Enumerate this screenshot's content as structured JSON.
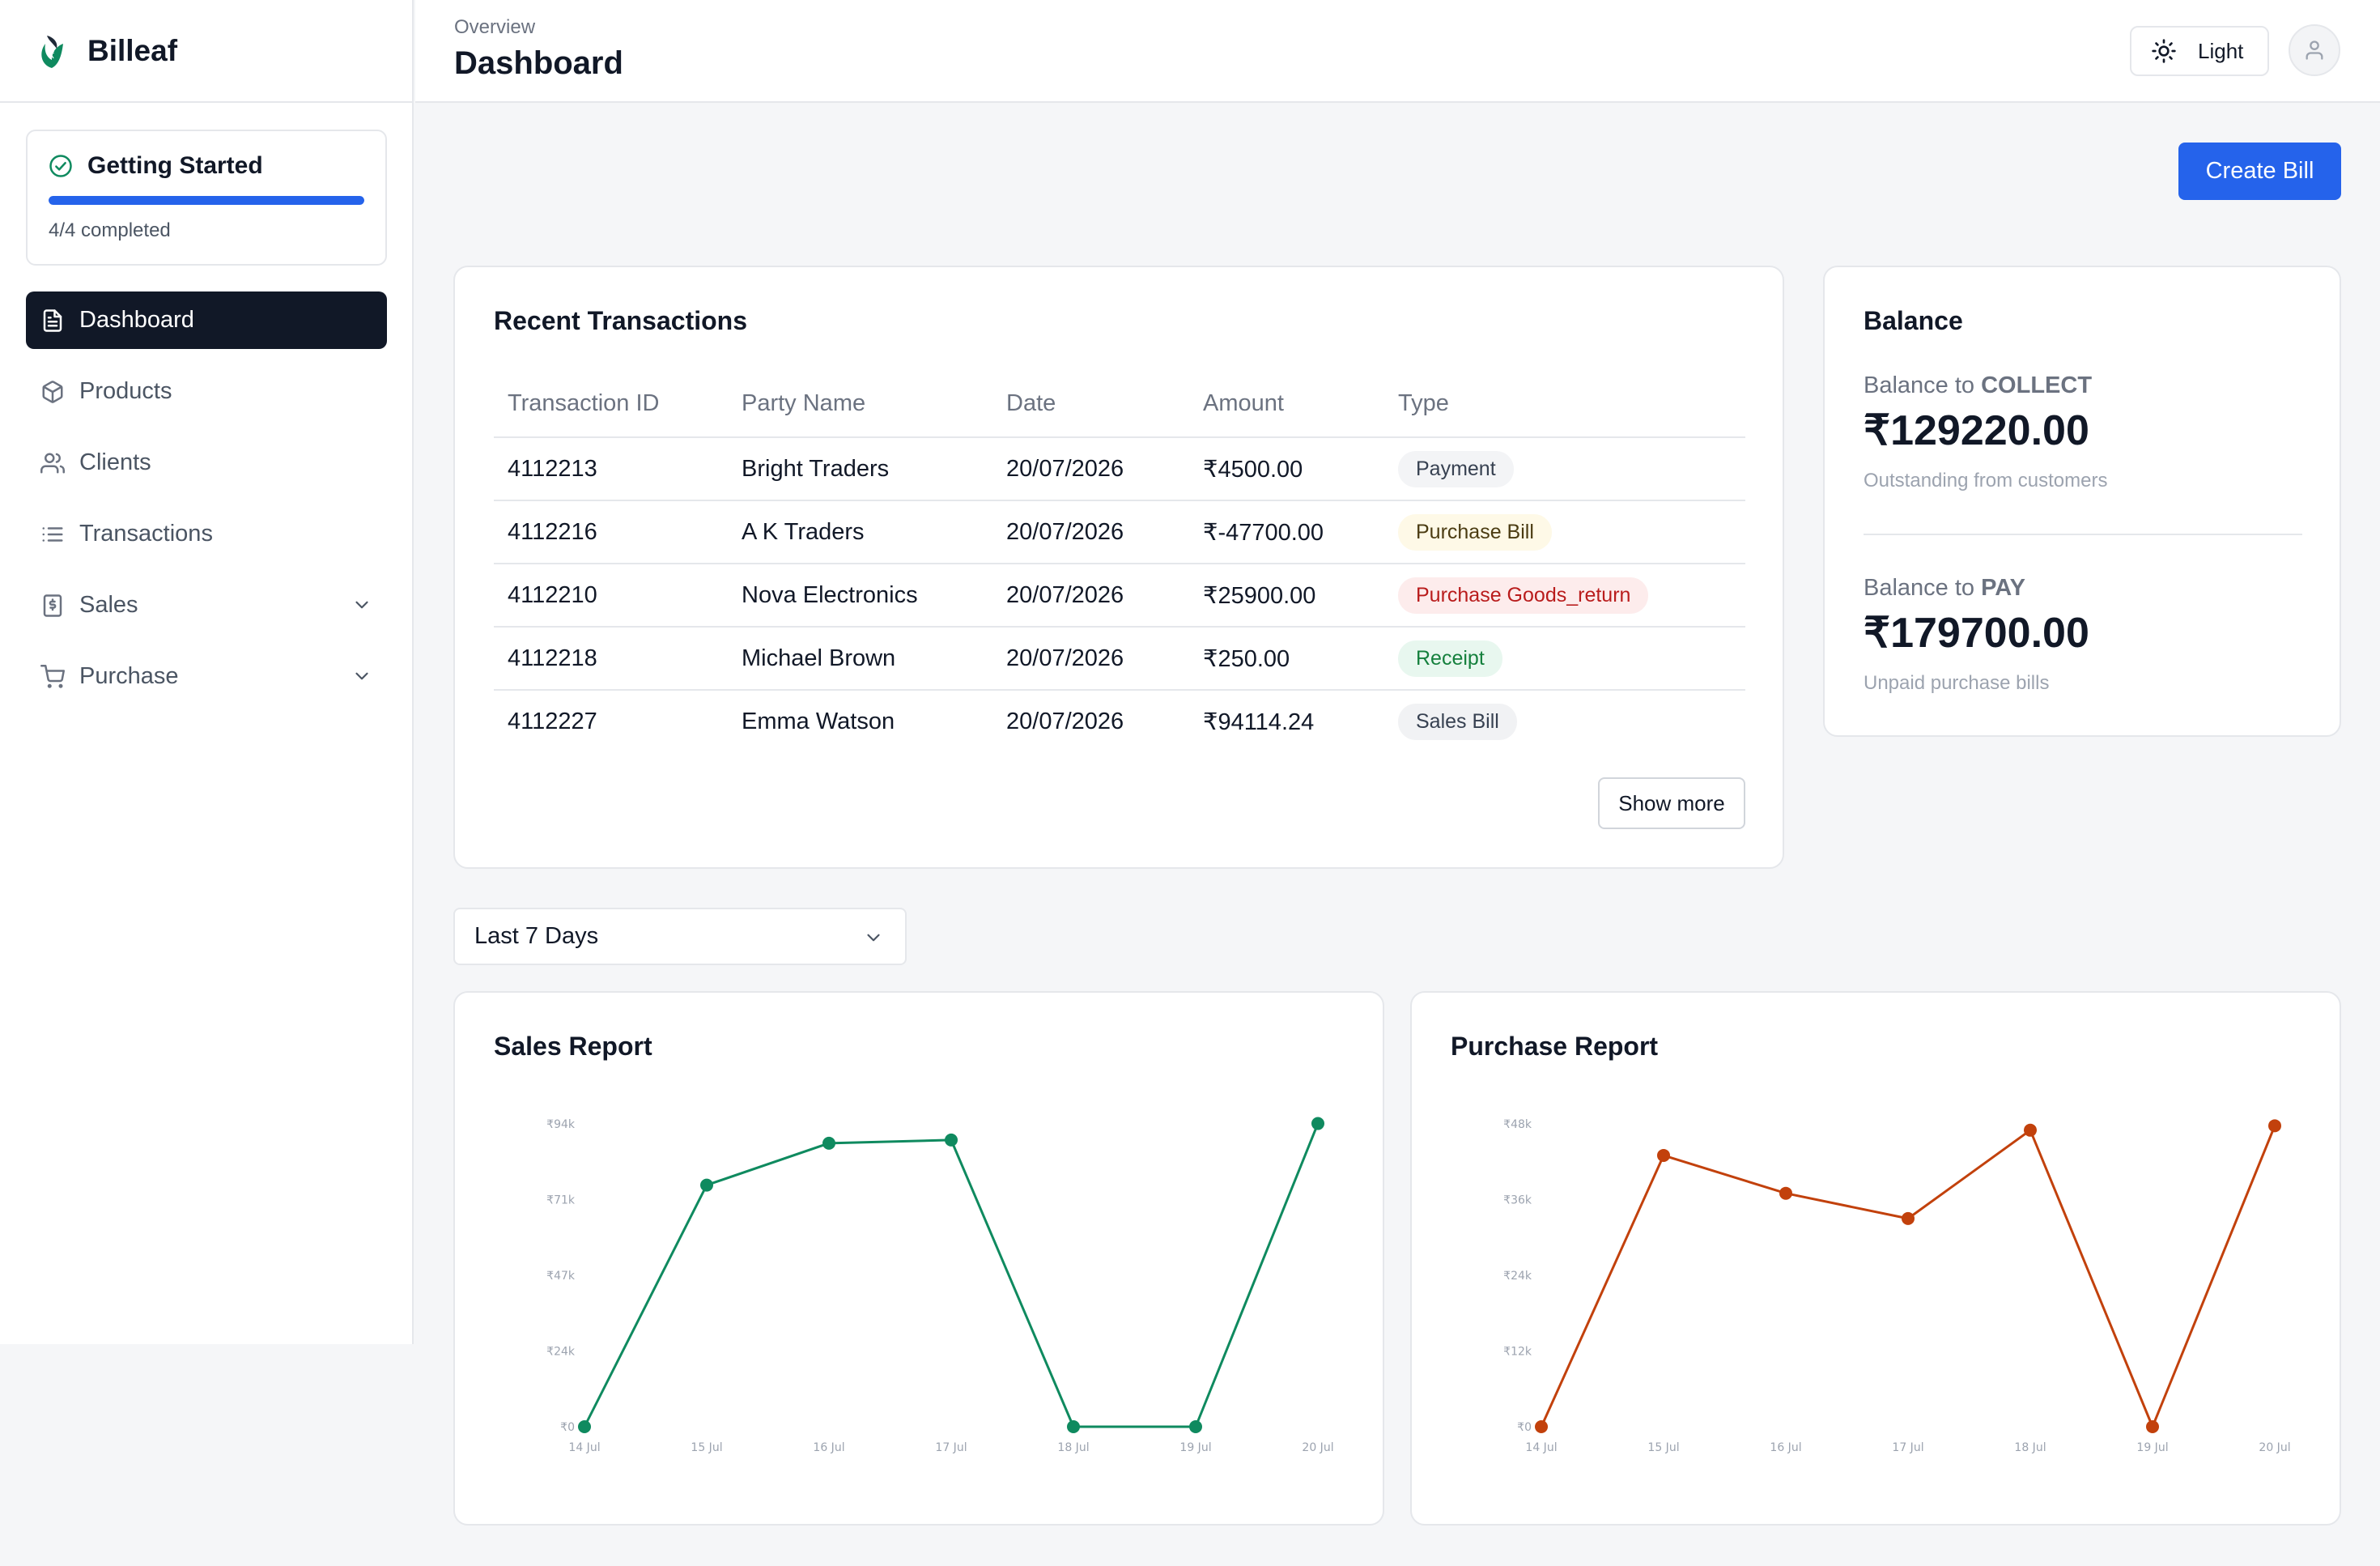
{
  "app": {
    "name": "Billeaf"
  },
  "getting_started": {
    "title": "Getting Started",
    "progress": 1.0,
    "status": "4/4 completed"
  },
  "sidebar": {
    "items": [
      {
        "label": "Dashboard",
        "icon": "document-icon",
        "active": true
      },
      {
        "label": "Products",
        "icon": "box-icon"
      },
      {
        "label": "Clients",
        "icon": "users-icon"
      },
      {
        "label": "Transactions",
        "icon": "list-icon"
      },
      {
        "label": "Sales",
        "icon": "receipt-icon",
        "expandable": true
      },
      {
        "label": "Purchase",
        "icon": "cart-icon",
        "expandable": true
      }
    ]
  },
  "header": {
    "breadcrumb": "Overview",
    "title": "Dashboard",
    "theme_label": "Light"
  },
  "actions": {
    "create_bill": "Create Bill"
  },
  "transactions": {
    "title": "Recent Transactions",
    "columns": [
      "Transaction ID",
      "Party Name",
      "Date",
      "Amount",
      "Type"
    ],
    "rows": [
      {
        "id": "4112213",
        "party": "Bright Traders",
        "date": "20/07/2026",
        "amount": "₹4500.00",
        "type": "Payment",
        "type_color": "#374151"
      },
      {
        "id": "4112216",
        "party": "A K Traders",
        "date": "20/07/2026",
        "amount": "₹-47700.00",
        "type": "Purchase Bill",
        "type_color": "#4b3c12"
      },
      {
        "id": "4112210",
        "party": "Nova Electronics",
        "date": "20/07/2026",
        "amount": "₹25900.00",
        "type": "Purchase Goods_return",
        "type_color": "#b91c1c"
      },
      {
        "id": "4112218",
        "party": "Michael Brown",
        "date": "20/07/2026",
        "amount": "₹250.00",
        "type": "Receipt",
        "type_color": "#15803d"
      },
      {
        "id": "4112227",
        "party": "Emma Watson",
        "date": "20/07/2026",
        "amount": "₹94114.24",
        "type": "Sales Bill",
        "type_color": "#374151"
      }
    ],
    "show_more": "Show more"
  },
  "balance": {
    "title": "Balance",
    "collect": {
      "prefix": "Balance to ",
      "emphasis": "COLLECT",
      "amount": "₹129220.00",
      "sub": "Outstanding from customers"
    },
    "pay": {
      "prefix": "Balance to ",
      "emphasis": "PAY",
      "amount": "₹179700.00",
      "sub": "Unpaid purchase bills"
    }
  },
  "range": {
    "selected": "Last 7 Days"
  },
  "chart_data": [
    {
      "type": "line",
      "title": "Sales Report",
      "categories": [
        "14 Jul",
        "15 Jul",
        "16 Jul",
        "17 Jul",
        "18 Jul",
        "19 Jul",
        "20 Jul"
      ],
      "y_ticks": [
        "₹0",
        "₹24k",
        "₹47k",
        "₹71k",
        "₹94k"
      ],
      "ylim": [
        0,
        94000
      ],
      "values": [
        0,
        75000,
        88000,
        89000,
        0,
        0,
        94114
      ],
      "color": "#0f8a5f",
      "grid": false
    },
    {
      "type": "line",
      "title": "Purchase Report",
      "categories": [
        "14 Jul",
        "15 Jul",
        "16 Jul",
        "17 Jul",
        "18 Jul",
        "19 Jul",
        "20 Jul"
      ],
      "y_ticks": [
        "₹0",
        "₹12k",
        "₹24k",
        "₹36k",
        "₹48k"
      ],
      "ylim": [
        0,
        48000
      ],
      "values": [
        0,
        43000,
        37000,
        33000,
        47000,
        0,
        47700
      ],
      "color": "#c2410c",
      "grid": false
    }
  ]
}
